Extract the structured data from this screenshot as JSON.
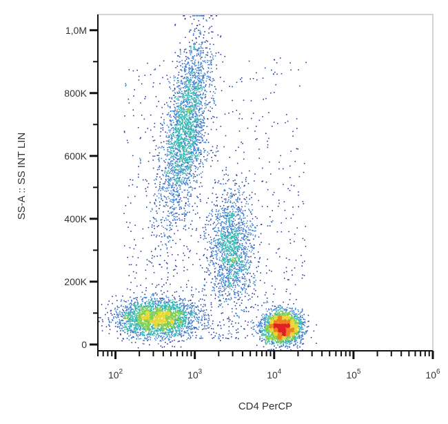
{
  "chart_data": {
    "type": "scatter",
    "subtype": "flow-cytometry density dot plot",
    "xlabel": "CD4 PerCP",
    "ylabel": "SS-A :: SS INT LIN",
    "x_scale": "log",
    "y_scale": "linear",
    "xlim": [
      60,
      1000000
    ],
    "ylim": [
      -20000,
      1050000
    ],
    "x_ticks": [
      {
        "value": 100,
        "base": "10",
        "exp": "2"
      },
      {
        "value": 1000,
        "base": "10",
        "exp": "3"
      },
      {
        "value": 10000,
        "base": "10",
        "exp": "4"
      },
      {
        "value": 100000,
        "base": "10",
        "exp": "5"
      },
      {
        "value": 1000000,
        "base": "10",
        "exp": "6"
      }
    ],
    "y_ticks": [
      {
        "value": 0,
        "label": "0"
      },
      {
        "value": 200000,
        "label": "200K"
      },
      {
        "value": 400000,
        "label": "400K"
      },
      {
        "value": 600000,
        "label": "600K"
      },
      {
        "value": 800000,
        "label": "800K"
      },
      {
        "value": 1000000,
        "label": "1,0M"
      }
    ],
    "grid": false,
    "legend": "none",
    "density_colors": [
      "#2b3a99",
      "#3f7fd0",
      "#36b7b2",
      "#7fce4f",
      "#e8d832",
      "#f07f22",
      "#e21f26"
    ],
    "populations": [
      {
        "x_center": 750,
        "x_spread_log10": 0.13,
        "y_center": 680000,
        "y_spread": 150000,
        "density": "high",
        "shape": "elongated, slanted"
      },
      {
        "x_center": 2800,
        "x_spread_log10": 0.14,
        "y_center": 310000,
        "y_spread": 90000,
        "density": "medium"
      },
      {
        "x_center": 330,
        "x_spread_log10": 0.25,
        "y_center": 85000,
        "y_spread": 30000,
        "density": "high"
      },
      {
        "x_center": 12500,
        "x_spread_log10": 0.12,
        "y_center": 55000,
        "y_spread": 25000,
        "density": "high"
      }
    ]
  }
}
